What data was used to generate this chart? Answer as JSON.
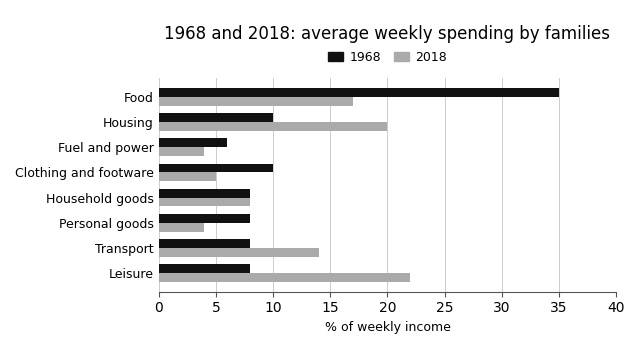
{
  "title": "1968 and 2018: average weekly spending by families",
  "categories": [
    "Food",
    "Housing",
    "Fuel and power",
    "Clothing and footware",
    "Household goods",
    "Personal goods",
    "Transport",
    "Leisure"
  ],
  "values_1968": [
    35,
    10,
    6,
    10,
    8,
    8,
    8,
    8
  ],
  "values_2018": [
    17,
    20,
    4,
    5,
    8,
    4,
    14,
    22
  ],
  "color_1968": "#111111",
  "color_2018": "#aaaaaa",
  "xlabel": "% of weekly income",
  "xlim": [
    0,
    40
  ],
  "xticks": [
    0,
    5,
    10,
    15,
    20,
    25,
    30,
    35,
    40
  ],
  "legend_labels": [
    "1968",
    "2018"
  ],
  "bar_height": 0.35,
  "background_color": "#ffffff",
  "title_fontsize": 12,
  "axis_fontsize": 9,
  "legend_fontsize": 9
}
